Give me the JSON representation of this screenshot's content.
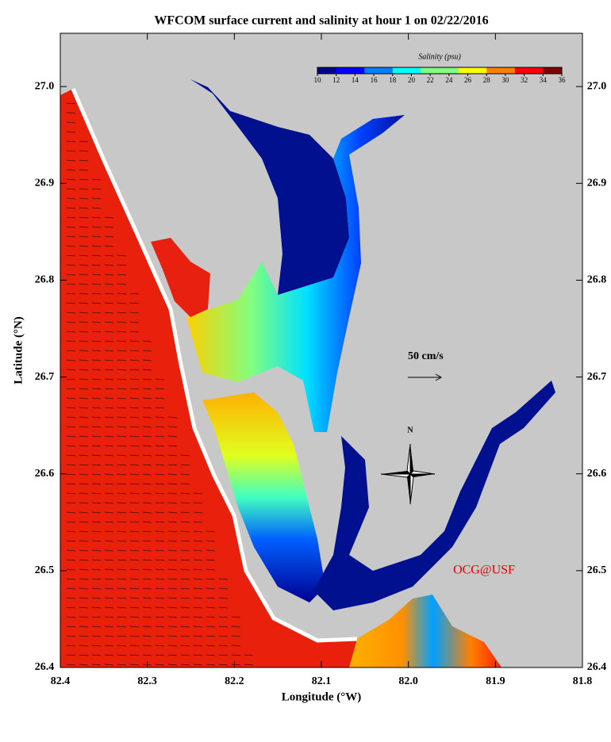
{
  "map": {
    "title": "WFCOM surface current and salinity at hour 1 on 02/22/2016",
    "xlabel": "Longitude (°W)",
    "ylabel": "Latitude (°N)",
    "xlim": [
      82.4,
      81.8
    ],
    "xticks": [
      82.4,
      82.3,
      82.2,
      82.1,
      {
        "value": 82,
        "label": "82.0"
      },
      81.9,
      81.8
    ],
    "ylim": [
      26.4,
      27.055
    ],
    "yticks": [
      26.4,
      26.5,
      26.6,
      26.7,
      26.8,
      26.9,
      {
        "value": 27,
        "label": "27.0"
      }
    ],
    "colorbar": {
      "label": "Salinity (psu)",
      "lim": [
        10,
        36
      ],
      "ticks": [
        10,
        12,
        14,
        16,
        18,
        20,
        22,
        24,
        26,
        28,
        30,
        32,
        34,
        36
      ],
      "colors": [
        "#00008b",
        "#0000ff",
        "#0080ff",
        "#00ffff",
        "#80ff80",
        "#ffff00",
        "#ff8000",
        "#ff0000",
        "#800000"
      ]
    },
    "scale_label": "50 cm/s",
    "north_label": "N",
    "credit": "OCG@USF"
  }
}
